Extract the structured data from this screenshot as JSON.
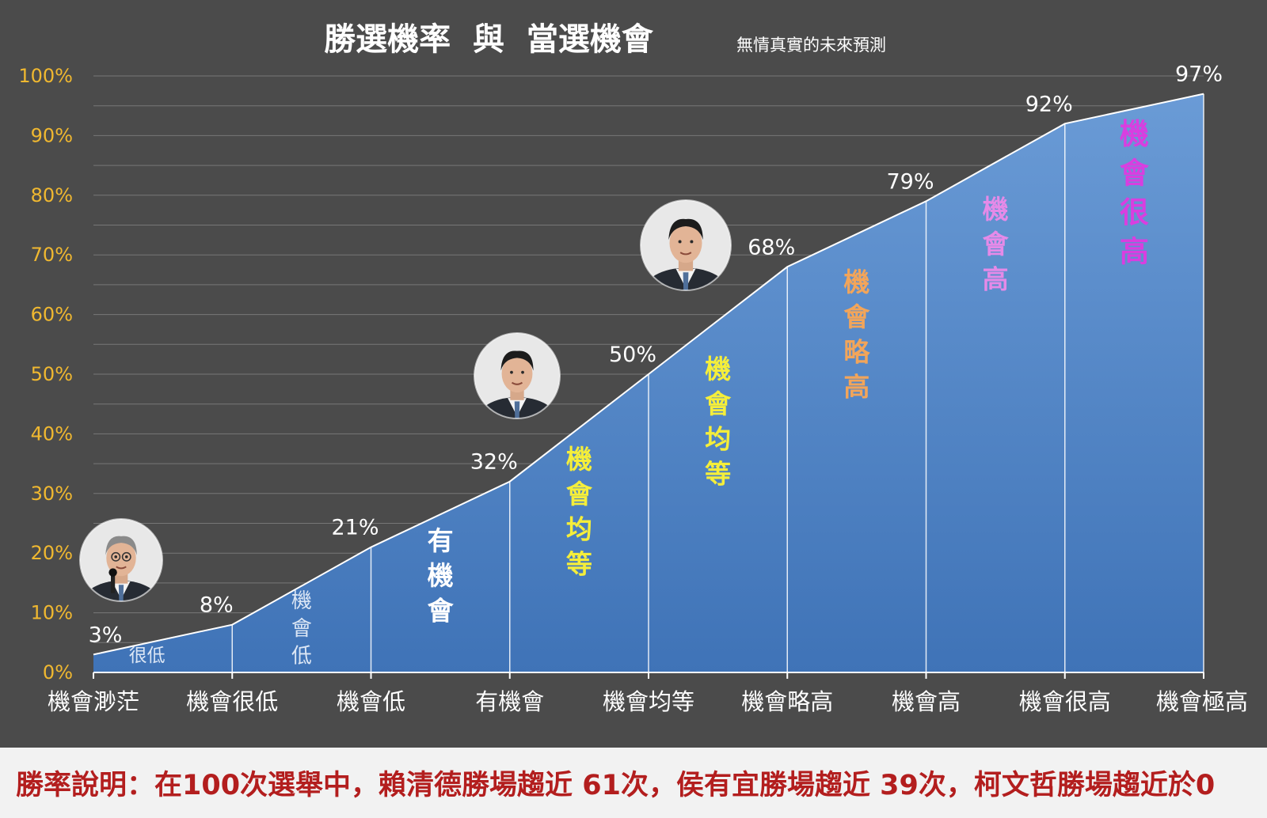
{
  "chart_data": {
    "type": "area",
    "title": "勝選機率  與  當選機會",
    "subtitle": "無情真實的未來預測",
    "categories": [
      "機會渺茫",
      "機會很低",
      "機會低",
      "有機會",
      "機會均等",
      "機會略高",
      "機會高",
      "機會很高",
      "機會極高"
    ],
    "values": [
      3,
      8,
      21,
      32,
      50,
      68,
      79,
      92,
      97
    ],
    "point_labels": [
      "3%",
      "8%",
      "21%",
      "32%",
      "50%",
      "68%",
      "79%",
      "92%",
      "97%"
    ],
    "ylim": [
      0,
      100
    ],
    "y_ticks": [
      "0%",
      "10%",
      "20%",
      "30%",
      "40%",
      "50%",
      "60%",
      "70%",
      "80%",
      "90%",
      "100%"
    ],
    "grid": true,
    "region_labels": [
      {
        "text": "很低",
        "color": "#dbe6f5"
      },
      {
        "text": "機會低",
        "color": "#dbe6f5"
      },
      {
        "text": "有機會",
        "color": "#ffffff"
      },
      {
        "text": "機會均等",
        "color": "#f5ee3a"
      },
      {
        "text": "機會均等",
        "color": "#f5ee3a"
      },
      {
        "text": "機會略高",
        "color": "#f2a55a"
      },
      {
        "text": "機會高",
        "color": "#e58ae8"
      },
      {
        "text": "機會很高",
        "color": "#d93ee0"
      }
    ],
    "colors": {
      "background": "#4b4b4b",
      "area_top": "#6a9bd6",
      "area_bottom": "#3f73b7",
      "y_tick": "#f0b830",
      "x_tick": "#ffffff",
      "grid": "#777777",
      "title": "#ffffff"
    }
  },
  "footer": {
    "text": "勝率說明：在100次選舉中，賴清德勝場趨近 61次，侯有宜勝場趨近 39次，柯文哲勝場趨近於0"
  },
  "portraits": [
    {
      "name": "candidate-portrait-ko",
      "category_index": 0
    },
    {
      "name": "candidate-portrait-hou",
      "category_index": 3
    },
    {
      "name": "candidate-portrait-lai",
      "category_index": 4
    }
  ]
}
